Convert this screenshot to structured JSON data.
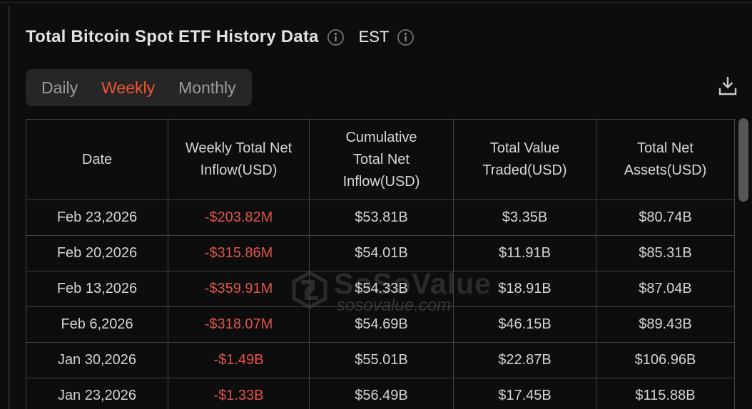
{
  "header": {
    "title": "Total Bitcoin Spot ETF History Data",
    "timezone_label": "EST"
  },
  "tabs": [
    {
      "label": "Daily",
      "active": false
    },
    {
      "label": "Weekly",
      "active": true
    },
    {
      "label": "Monthly",
      "active": false
    }
  ],
  "colors": {
    "accent_active_tab": "#ee5431",
    "negative_value": "#e25449",
    "background": "#0d0d0d",
    "table_border": "#414141"
  },
  "icons": {
    "title_info": "info-circle",
    "est_info": "info-circle",
    "download": "download-tray"
  },
  "table": {
    "columns": [
      "Date",
      "Weekly Total Net Inflow(USD)",
      "Cumulative Total Net Inflow(USD)",
      "Total Value Traded(USD)",
      "Total Net Assets(USD)"
    ],
    "rows": [
      {
        "date": "Feb 23,2026",
        "weekly_net_inflow": "-$203.82M",
        "inflow_negative": true,
        "cumulative_net_inflow": "$53.81B",
        "value_traded": "$3.35B",
        "net_assets": "$80.74B"
      },
      {
        "date": "Feb 20,2026",
        "weekly_net_inflow": "-$315.86M",
        "inflow_negative": true,
        "cumulative_net_inflow": "$54.01B",
        "value_traded": "$11.91B",
        "net_assets": "$85.31B"
      },
      {
        "date": "Feb 13,2026",
        "weekly_net_inflow": "-$359.91M",
        "inflow_negative": true,
        "cumulative_net_inflow": "$54.33B",
        "value_traded": "$18.91B",
        "net_assets": "$87.04B"
      },
      {
        "date": "Feb 6,2026",
        "weekly_net_inflow": "-$318.07M",
        "inflow_negative": true,
        "cumulative_net_inflow": "$54.69B",
        "value_traded": "$46.15B",
        "net_assets": "$89.43B"
      },
      {
        "date": "Jan 30,2026",
        "weekly_net_inflow": "-$1.49B",
        "inflow_negative": true,
        "cumulative_net_inflow": "$55.01B",
        "value_traded": "$22.87B",
        "net_assets": "$106.96B"
      },
      {
        "date": "Jan 23,2026",
        "weekly_net_inflow": "-$1.33B",
        "inflow_negative": true,
        "cumulative_net_inflow": "$56.49B",
        "value_traded": "$17.45B",
        "net_assets": "$115.88B"
      }
    ]
  },
  "watermark": {
    "brand": "SoSoValue",
    "domain": "sosovalue.com"
  }
}
